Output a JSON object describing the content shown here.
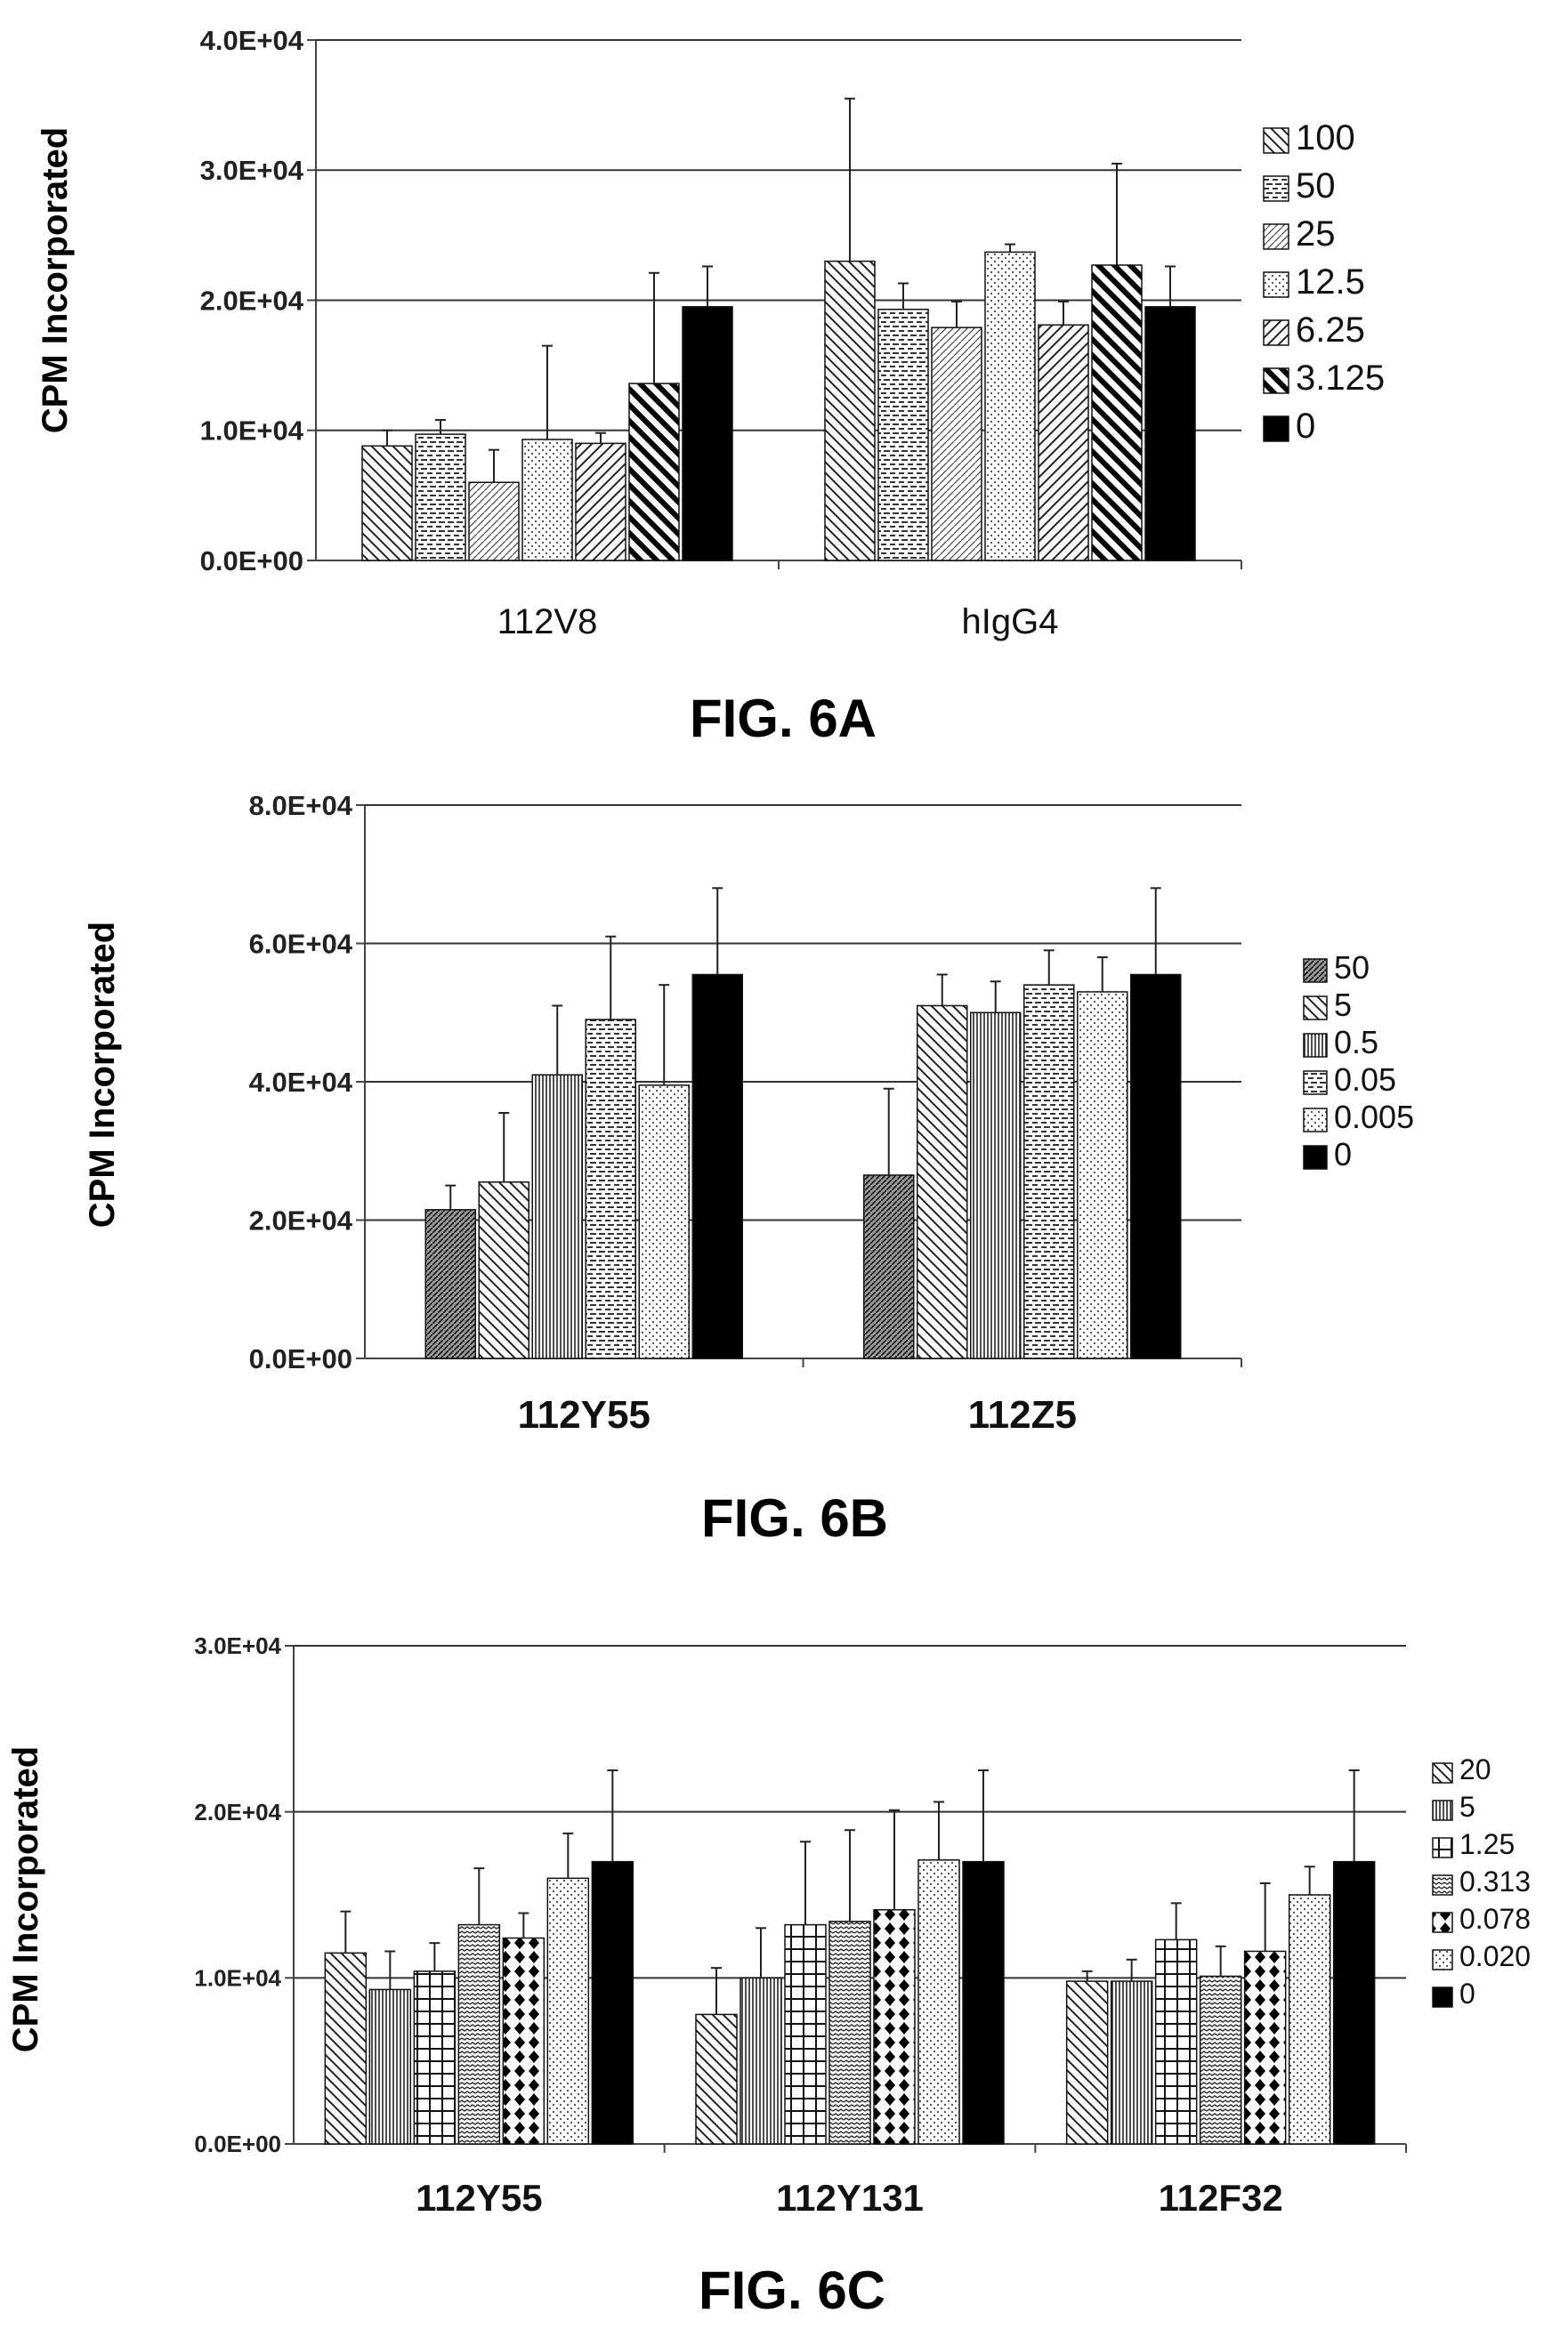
{
  "chart_data": [
    {
      "type": "bar",
      "figure_label": "FIG. 6A",
      "ylabel": "CPM Incorporated",
      "ylim": [
        0,
        40000
      ],
      "yticks": [
        {
          "value": 0,
          "label": "0.0E+00"
        },
        {
          "value": 10000,
          "label": "1.0E+04"
        },
        {
          "value": 20000,
          "label": "2.0E+04"
        },
        {
          "value": 30000,
          "label": "3.0E+04"
        },
        {
          "value": 40000,
          "label": "4.0E+04"
        }
      ],
      "grid": true,
      "legend_position": "right",
      "categories": [
        "112V8",
        "hIgG4"
      ],
      "series": [
        {
          "name": "100",
          "pattern": "diag-back",
          "values": [
            8800,
            23000
          ],
          "errors": [
            1200,
            12500
          ]
        },
        {
          "name": "50",
          "pattern": "hlines",
          "values": [
            9700,
            19300
          ],
          "errors": [
            1100,
            2000
          ]
        },
        {
          "name": "25",
          "pattern": "diag-fine",
          "values": [
            6000,
            17900
          ],
          "errors": [
            2500,
            2000
          ]
        },
        {
          "name": "12.5",
          "pattern": "dots",
          "values": [
            9300,
            23700
          ],
          "errors": [
            7200,
            600
          ]
        },
        {
          "name": "6.25",
          "pattern": "diag-fwd",
          "values": [
            9000,
            18100
          ],
          "errors": [
            800,
            1800
          ]
        },
        {
          "name": "3.125",
          "pattern": "diag-bold",
          "values": [
            13600,
            22700
          ],
          "errors": [
            8500,
            7800
          ]
        },
        {
          "name": "0",
          "pattern": "solid",
          "values": [
            19500,
            19500
          ],
          "errors": [
            3100,
            3100
          ]
        }
      ]
    },
    {
      "type": "bar",
      "figure_label": "FIG. 6B",
      "ylabel": "CPM Incorporated",
      "ylim": [
        0,
        80000
      ],
      "yticks": [
        {
          "value": 0,
          "label": "0.0E+00"
        },
        {
          "value": 20000,
          "label": "2.0E+04"
        },
        {
          "value": 40000,
          "label": "4.0E+04"
        },
        {
          "value": 60000,
          "label": "6.0E+04"
        },
        {
          "value": 80000,
          "label": "8.0E+04"
        }
      ],
      "grid": true,
      "legend_position": "right",
      "categories": [
        "112Y55",
        "112Z5"
      ],
      "series": [
        {
          "name": "50",
          "pattern": "dense-fwd",
          "values": [
            21500,
            26500
          ],
          "errors": [
            3500,
            12500
          ]
        },
        {
          "name": "5",
          "pattern": "diag-back",
          "values": [
            25500,
            51000
          ],
          "errors": [
            10000,
            4500
          ]
        },
        {
          "name": "0.5",
          "pattern": "vlines",
          "values": [
            41000,
            50000
          ],
          "errors": [
            10000,
            4500
          ]
        },
        {
          "name": "0.05",
          "pattern": "hlines",
          "values": [
            49000,
            54000
          ],
          "errors": [
            12000,
            5000
          ]
        },
        {
          "name": "0.005",
          "pattern": "dots",
          "values": [
            39500,
            53000
          ],
          "errors": [
            14500,
            5000
          ]
        },
        {
          "name": "0",
          "pattern": "solid",
          "values": [
            55500,
            55500
          ],
          "errors": [
            12500,
            12500
          ]
        }
      ]
    },
    {
      "type": "bar",
      "figure_label": "FIG. 6C",
      "ylabel": "CPM Incorporated",
      "ylim": [
        0,
        30000
      ],
      "yticks": [
        {
          "value": 0,
          "label": "0.0E+00"
        },
        {
          "value": 10000,
          "label": "1.0E+04"
        },
        {
          "value": 20000,
          "label": "2.0E+04"
        },
        {
          "value": 30000,
          "label": "3.0E+04"
        }
      ],
      "grid": true,
      "legend_position": "right",
      "categories": [
        "112Y55",
        "112Y131",
        "112F32"
      ],
      "series": [
        {
          "name": "20",
          "pattern": "diag-back",
          "values": [
            11500,
            7800,
            9800
          ],
          "errors": [
            2500,
            2800,
            600
          ]
        },
        {
          "name": "5",
          "pattern": "vlines",
          "values": [
            9300,
            10000,
            9800
          ],
          "errors": [
            2300,
            3000,
            1300
          ]
        },
        {
          "name": "1.25",
          "pattern": "grid",
          "values": [
            10400,
            13200,
            12300
          ],
          "errors": [
            1700,
            5000,
            2200
          ]
        },
        {
          "name": "0.313",
          "pattern": "zigzag",
          "values": [
            13200,
            13400,
            10100
          ],
          "errors": [
            3400,
            5500,
            1800
          ]
        },
        {
          "name": "0.078",
          "pattern": "diamonds",
          "values": [
            12400,
            14100,
            11600
          ],
          "errors": [
            1500,
            6000,
            4100
          ]
        },
        {
          "name": "0.020",
          "pattern": "dots",
          "values": [
            16000,
            17100,
            15000
          ],
          "errors": [
            2700,
            3500,
            1700
          ]
        },
        {
          "name": "0",
          "pattern": "solid",
          "values": [
            17000,
            17000,
            17000
          ],
          "errors": [
            5500,
            5500,
            5500
          ]
        }
      ]
    }
  ]
}
